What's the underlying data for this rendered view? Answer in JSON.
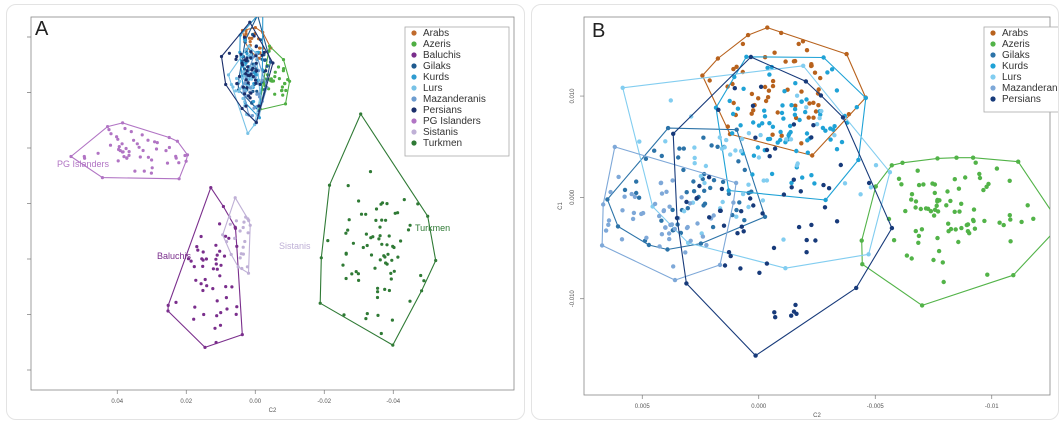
{
  "chart_data": [
    {
      "panel": "A",
      "type": "scatter",
      "xlabel": "C2",
      "ylabel": "",
      "x_reversed": true,
      "xlim": [
        0.065,
        -0.075
      ],
      "ylim": [
        -0.07,
        0.04
      ],
      "x_ticks": [
        0.04,
        0.02,
        0.0,
        -0.02,
        -0.04
      ],
      "x_tick_labels": [
        "0.04",
        "0.02",
        "0.00",
        "-0.02",
        "-0.04"
      ],
      "legend": {
        "position": "top-right",
        "entries": [
          "Arabs",
          "Azeris",
          "Baluchis",
          "Gilaks",
          "Kurds",
          "Lurs",
          "Mazanderanis",
          "Persians",
          "PG Islanders",
          "Sistanis",
          "Turkmen"
        ]
      },
      "group_colors": {
        "Arabs": "#c06a2c",
        "Azeris": "#4fae43",
        "Baluchis": "#7a2e8c",
        "Gilaks": "#1f5a8f",
        "Kurds": "#2f9bd0",
        "Lurs": "#78c2e6",
        "Mazanderanis": "#6d9ccf",
        "Persians": "#1b2f6b",
        "PG Islanders": "#b174c4",
        "Sistanis": "#bfb0d6",
        "Turkmen": "#2f7a35"
      },
      "cluster_labels": [
        {
          "text": "PG Islanders",
          "color": "#b174c4"
        },
        {
          "text": "Baluchis",
          "color": "#7a2e8c"
        },
        {
          "text": "Sistanis",
          "color": "#bfb0d6"
        },
        {
          "text": "Turkmen",
          "color": "#2f7a35"
        }
      ],
      "series": [
        {
          "name": "Arabs",
          "center": [
            0.0005,
            0.033
          ],
          "spread": [
            0.002,
            0.003
          ],
          "n": 20
        },
        {
          "name": "Azeris",
          "center": [
            -0.006,
            0.022
          ],
          "spread": [
            0.0025,
            0.004
          ],
          "n": 35
        },
        {
          "name": "Baluchis",
          "center": [
            0.013,
            -0.037
          ],
          "spread": [
            0.004,
            0.009
          ],
          "n": 55
        },
        {
          "name": "Gilaks",
          "center": [
            0.001,
            0.024
          ],
          "spread": [
            0.0022,
            0.006
          ],
          "n": 45
        },
        {
          "name": "Kurds",
          "center": [
            0.0015,
            0.026
          ],
          "spread": [
            0.002,
            0.006
          ],
          "n": 45
        },
        {
          "name": "Lurs",
          "center": [
            0.0025,
            0.022
          ],
          "spread": [
            0.002,
            0.005
          ],
          "n": 40
        },
        {
          "name": "Mazanderanis",
          "center": [
            0.0005,
            0.02
          ],
          "spread": [
            0.0022,
            0.005
          ],
          "n": 30
        },
        {
          "name": "Persians",
          "center": [
            0.0015,
            0.023
          ],
          "spread": [
            0.0028,
            0.007
          ],
          "n": 50
        },
        {
          "name": "PG Islanders",
          "center": [
            0.035,
            0.0
          ],
          "spread": [
            0.011,
            0.004
          ],
          "n": 55
        },
        {
          "name": "Sistanis",
          "center": [
            0.005,
            -0.024
          ],
          "spread": [
            0.003,
            0.007
          ],
          "n": 25
        },
        {
          "name": "Turkmen",
          "center": [
            -0.036,
            -0.03
          ],
          "spread": [
            0.008,
            0.013
          ],
          "n": 80
        }
      ]
    },
    {
      "panel": "B",
      "type": "scatter",
      "xlabel": "C2",
      "ylabel": "C1",
      "x_reversed": true,
      "xlim": [
        0.0075,
        -0.0125
      ],
      "ylim": [
        -0.0195,
        0.0178
      ],
      "x_ticks": [
        0.005,
        0.0,
        -0.005,
        -0.01
      ],
      "x_tick_labels": [
        "0.005",
        "0.000",
        "-0.005",
        "-0.01"
      ],
      "y_ticks": [
        0.01,
        0.0,
        -0.01,
        -0.02
      ],
      "y_tick_labels": [
        "0.010",
        "0.000",
        "-0.010",
        "-0.020"
      ],
      "legend": {
        "position": "top-right",
        "entries": [
          "Arabs",
          "Azeris",
          "Gilaks",
          "Kurds",
          "Lurs",
          "Mazanderanis",
          "Persians"
        ]
      },
      "group_colors": {
        "Arabs": "#b8621d",
        "Azeris": "#52b348",
        "Gilaks": "#2c73a8",
        "Kurds": "#1fa2d6",
        "Lurs": "#82cdf0",
        "Mazanderanis": "#7ea8d8",
        "Persians": "#173a7a"
      },
      "series": [
        {
          "name": "Arabs",
          "center": [
            -0.0008,
            0.0105
          ],
          "spread": [
            0.0014,
            0.0025
          ],
          "n": 60
        },
        {
          "name": "Azeris",
          "center": [
            -0.0085,
            -0.0015
          ],
          "spread": [
            0.0016,
            0.003
          ],
          "n": 90
        },
        {
          "name": "Gilaks",
          "center": [
            0.0025,
            0.001
          ],
          "spread": [
            0.0018,
            0.0025
          ],
          "n": 55
        },
        {
          "name": "Kurds",
          "center": [
            -0.0015,
            0.0075
          ],
          "spread": [
            0.0018,
            0.0028
          ],
          "n": 80
        },
        {
          "name": "Lurs",
          "center": [
            0.0005,
            0.0035
          ],
          "spread": [
            0.0025,
            0.004
          ],
          "n": 55
        },
        {
          "name": "Mazanderanis",
          "center": [
            0.0042,
            -0.002
          ],
          "spread": [
            0.0016,
            0.0025
          ],
          "n": 55
        },
        {
          "name": "Persians",
          "center": [
            -0.0005,
            -0.001
          ],
          "spread": [
            0.0022,
            0.0055
          ],
          "n": 65
        }
      ]
    }
  ]
}
